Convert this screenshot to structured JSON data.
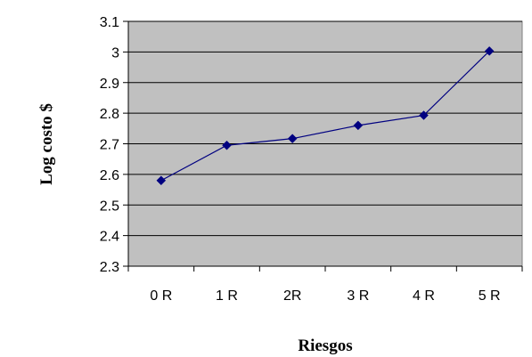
{
  "chart_data": {
    "type": "line",
    "title": "",
    "xlabel": "Riesgos",
    "ylabel": "Log costo $",
    "categories": [
      "0 R",
      "1 R",
      "2R",
      "3 R",
      "4 R",
      "5 R"
    ],
    "series": [
      {
        "values": [
          2.58,
          2.695,
          2.717,
          2.76,
          2.793,
          3.003
        ],
        "color": "#000080",
        "marker": "diamond"
      }
    ],
    "ylim": [
      2.3,
      3.1
    ],
    "yticks": [
      "2.3",
      "2.4",
      "2.5",
      "2.6",
      "2.7",
      "2.8",
      "2.9",
      "3",
      "3.1"
    ],
    "grid": true,
    "plot_background": "#c0c0c0",
    "gridline_color": "#000000",
    "legend": "none"
  }
}
